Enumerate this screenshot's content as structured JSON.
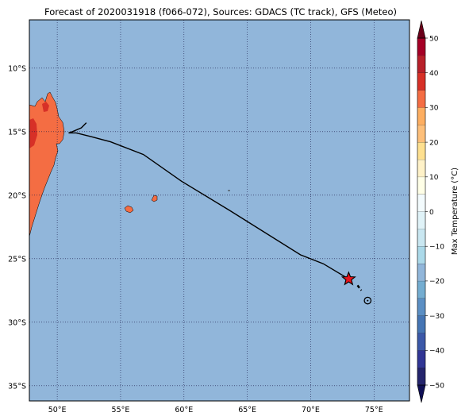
{
  "title": "Forecast of 2020031918 (f066-072), Sources: GDACS (TC track), GFS (Meteo)",
  "map": {
    "lon_range": [
      47.8,
      77.8
    ],
    "lat_range": [
      -36.2,
      -6.2
    ],
    "lat_ticks": [
      {
        "value": -10,
        "label": "10°S"
      },
      {
        "value": -15,
        "label": "15°S"
      },
      {
        "value": -20,
        "label": "20°S"
      },
      {
        "value": -25,
        "label": "25°S"
      },
      {
        "value": -30,
        "label": "30°S"
      },
      {
        "value": -35,
        "label": "35°S"
      }
    ],
    "lon_ticks": [
      {
        "value": 50,
        "label": "50°E"
      },
      {
        "value": 55,
        "label": "55°E"
      },
      {
        "value": 60,
        "label": "60°E"
      },
      {
        "value": 65,
        "label": "65°E"
      },
      {
        "value": 70,
        "label": "70°E"
      },
      {
        "value": 75,
        "label": "75°E"
      }
    ],
    "ocean_color": "#91b6da",
    "land_color": "#f46d43",
    "land_hot_color": "#d73027",
    "grid": "dotted",
    "track": {
      "color": "#000000",
      "points": [
        {
          "lon": 52.3,
          "lat": -14.3
        },
        {
          "lon": 51.9,
          "lat": -14.7
        },
        {
          "lon": 51.2,
          "lat": -15.0
        },
        {
          "lon": 50.9,
          "lat": -15.1
        },
        {
          "lon": 51.5,
          "lat": -15.1
        },
        {
          "lon": 52.7,
          "lat": -15.4
        },
        {
          "lon": 54.2,
          "lat": -15.8
        },
        {
          "lon": 56.8,
          "lat": -16.8
        },
        {
          "lon": 59.8,
          "lat": -18.9
        },
        {
          "lon": 63.6,
          "lat": -21.2
        },
        {
          "lon": 69.2,
          "lat": -24.7
        },
        {
          "lon": 71.0,
          "lat": -25.4
        },
        {
          "lon": 73.0,
          "lat": -26.6
        }
      ],
      "forecast_points": [
        {
          "lon": 73.7,
          "lat": -27.1
        },
        {
          "lon": 74.0,
          "lat": -27.5
        }
      ],
      "current_position": {
        "lon": 73.0,
        "lat": -26.6,
        "symbol": "star-icon",
        "color": "#e8141c"
      },
      "forecast_position": {
        "lon": 74.5,
        "lat": -28.3,
        "symbol": "circle-icon"
      }
    }
  },
  "colorbar": {
    "label": "Max Temperature (°C)",
    "ticks": [
      "50",
      "40",
      "30",
      "20",
      "10",
      "0",
      "−10",
      "−20",
      "−30",
      "−40",
      "−50"
    ],
    "levels": [
      {
        "range": [
          -50,
          -45
        ],
        "color": "#24246c"
      },
      {
        "range": [
          -45,
          -40
        ],
        "color": "#313695"
      },
      {
        "range": [
          -40,
          -35
        ],
        "color": "#3b58a8"
      },
      {
        "range": [
          -35,
          -30
        ],
        "color": "#4575b4"
      },
      {
        "range": [
          -30,
          -25
        ],
        "color": "#5b8fc4"
      },
      {
        "range": [
          -25,
          -20
        ],
        "color": "#74add1"
      },
      {
        "range": [
          -20,
          -15
        ],
        "color": "#91b6da"
      },
      {
        "range": [
          -15,
          -10
        ],
        "color": "#abd9e9"
      },
      {
        "range": [
          -10,
          -5
        ],
        "color": "#c9e7f1"
      },
      {
        "range": [
          -5,
          0
        ],
        "color": "#e0f3f8"
      },
      {
        "range": [
          0,
          5
        ],
        "color": "#f3fbfd"
      },
      {
        "range": [
          5,
          10
        ],
        "color": "#ffffe7"
      },
      {
        "range": [
          10,
          15
        ],
        "color": "#fff2c8"
      },
      {
        "range": [
          15,
          20
        ],
        "color": "#fee090"
      },
      {
        "range": [
          20,
          25
        ],
        "color": "#fdbf7a"
      },
      {
        "range": [
          25,
          30
        ],
        "color": "#fdae61"
      },
      {
        "range": [
          30,
          35
        ],
        "color": "#f46d43"
      },
      {
        "range": [
          35,
          40
        ],
        "color": "#d73027"
      },
      {
        "range": [
          40,
          45
        ],
        "color": "#b8202a"
      },
      {
        "range": [
          45,
          50
        ],
        "color": "#a50026"
      }
    ],
    "under_color": "#0f0f55",
    "over_color": "#6b001a"
  }
}
